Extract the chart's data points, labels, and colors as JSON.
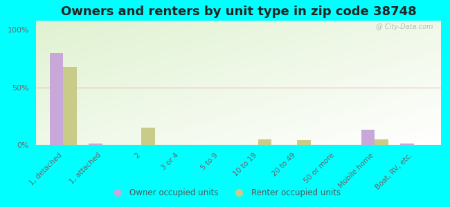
{
  "title": "Owners and renters by unit type in zip code 38748",
  "categories": [
    "1, detached",
    "1, attached",
    "2",
    "3 or 4",
    "5 to 9",
    "10 to 19",
    "20 to 49",
    "50 or more",
    "Mobile home",
    "Boat, RV, etc."
  ],
  "owner_values": [
    80,
    1,
    0,
    0,
    0,
    0,
    0,
    0,
    13,
    1
  ],
  "renter_values": [
    68,
    0,
    15,
    0,
    0,
    5,
    4,
    0,
    5,
    0
  ],
  "owner_color": "#c8a8d8",
  "renter_color": "#c8cc88",
  "background_color": "#00ffff",
  "yticks": [
    0,
    50,
    100
  ],
  "ylim": [
    0,
    108
  ],
  "legend_owner": "Owner occupied units",
  "legend_renter": "Renter occupied units",
  "title_fontsize": 13,
  "bar_width": 0.35,
  "watermark": "@ City-Data.com"
}
